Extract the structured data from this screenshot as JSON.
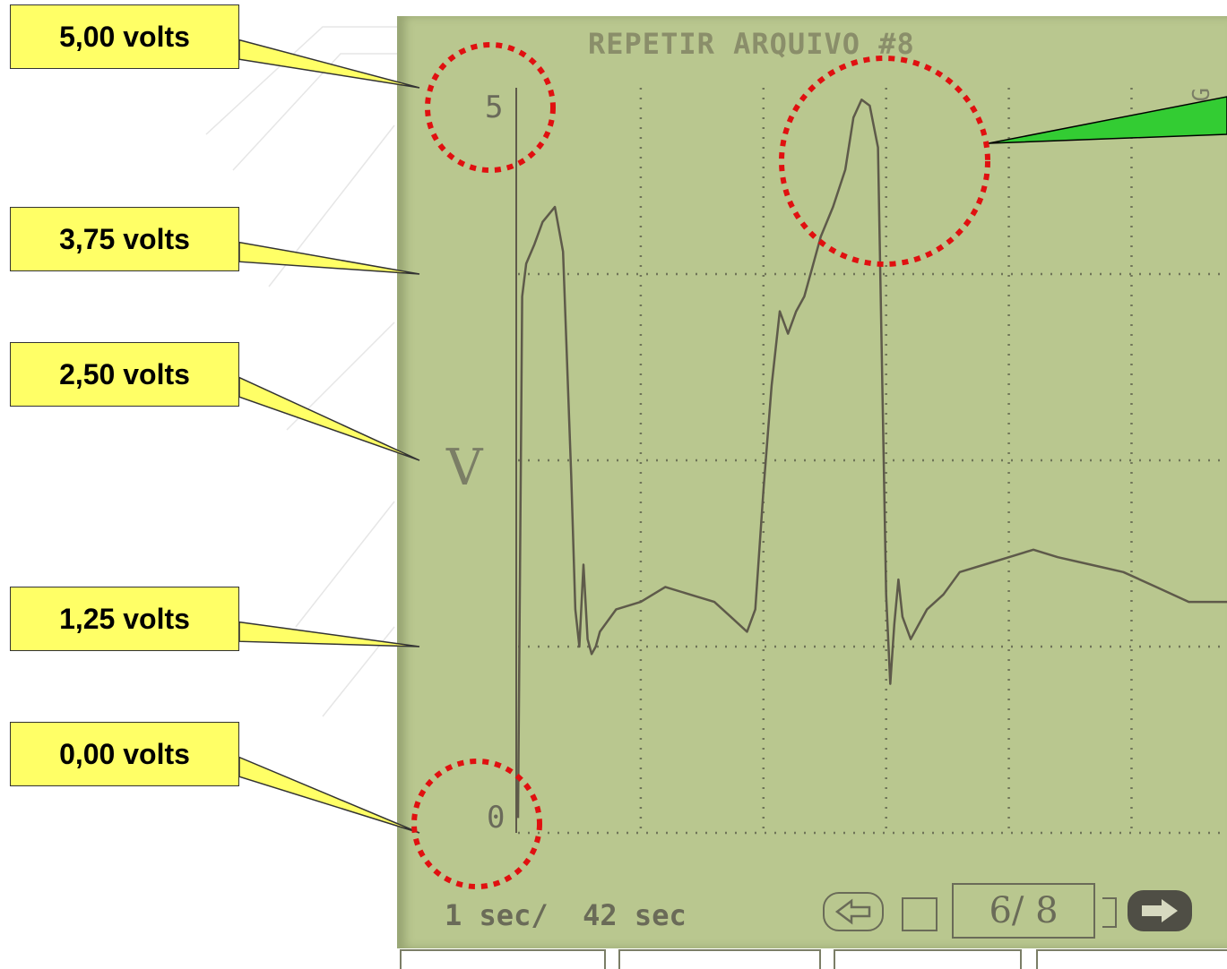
{
  "scope": {
    "title": "REPETIR ARQUIVO #8",
    "scale_top": "5",
    "scale_bottom": "0",
    "unit": "V",
    "edge_text": "ZG",
    "timebase": "1 sec/  42 sec",
    "page_counter": "6/ 8"
  },
  "callouts": [
    {
      "label": "5,00 volts"
    },
    {
      "label": "3,75 volts"
    },
    {
      "label": "2,50 volts"
    },
    {
      "label": "1,25 volts"
    },
    {
      "label": "0,00 volts"
    }
  ],
  "colors": {
    "screen": "#b9c78f",
    "trace": "#5e5a4a",
    "callout_fill": "#ffff66",
    "highlight_circle": "#e01010",
    "arrow_green": "#33cc33"
  },
  "chart_data": {
    "type": "line",
    "title": "REPETIR ARQUIVO #8",
    "xlabel": "",
    "ylabel": "V",
    "xlim": [
      0,
      8.7
    ],
    "ylim": [
      0,
      5
    ],
    "y_ticks": [
      0,
      1.25,
      2.5,
      3.75,
      5
    ],
    "x_ticks": [
      0,
      1.5,
      3.0,
      4.5,
      6.0,
      7.5
    ],
    "grid": true,
    "series": [
      {
        "x": [
          0,
          0.05,
          0.1,
          0.2,
          0.3,
          0.45,
          0.55,
          0.65,
          0.7,
          0.75,
          0.8,
          0.85,
          0.9,
          0.95,
          1.0,
          1.2,
          1.5,
          1.8,
          2.1,
          2.4,
          2.6,
          2.8,
          2.9,
          3.0,
          3.1,
          3.2,
          3.3,
          3.4,
          3.5,
          3.6,
          3.7,
          3.85,
          4.0,
          4.1,
          4.2,
          4.3,
          4.4,
          4.5,
          4.55,
          4.6,
          4.65,
          4.7,
          4.8,
          4.9,
          5.0,
          5.2,
          5.4,
          5.7,
          6.0,
          6.3,
          6.6,
          7.0,
          7.4,
          7.8,
          8.2,
          8.7
        ],
        "values": [
          0.1,
          3.6,
          3.82,
          3.95,
          4.1,
          4.2,
          3.9,
          2.4,
          1.5,
          1.25,
          1.8,
          1.3,
          1.2,
          1.25,
          1.35,
          1.5,
          1.55,
          1.65,
          1.6,
          1.55,
          1.45,
          1.35,
          1.5,
          2.3,
          3.0,
          3.5,
          3.35,
          3.5,
          3.6,
          3.8,
          4.0,
          4.2,
          4.45,
          4.8,
          4.92,
          4.88,
          4.6,
          1.6,
          1.0,
          1.4,
          1.7,
          1.45,
          1.3,
          1.4,
          1.5,
          1.6,
          1.75,
          1.8,
          1.85,
          1.9,
          1.85,
          1.8,
          1.75,
          1.65,
          1.55,
          1.55
        ]
      }
    ]
  }
}
